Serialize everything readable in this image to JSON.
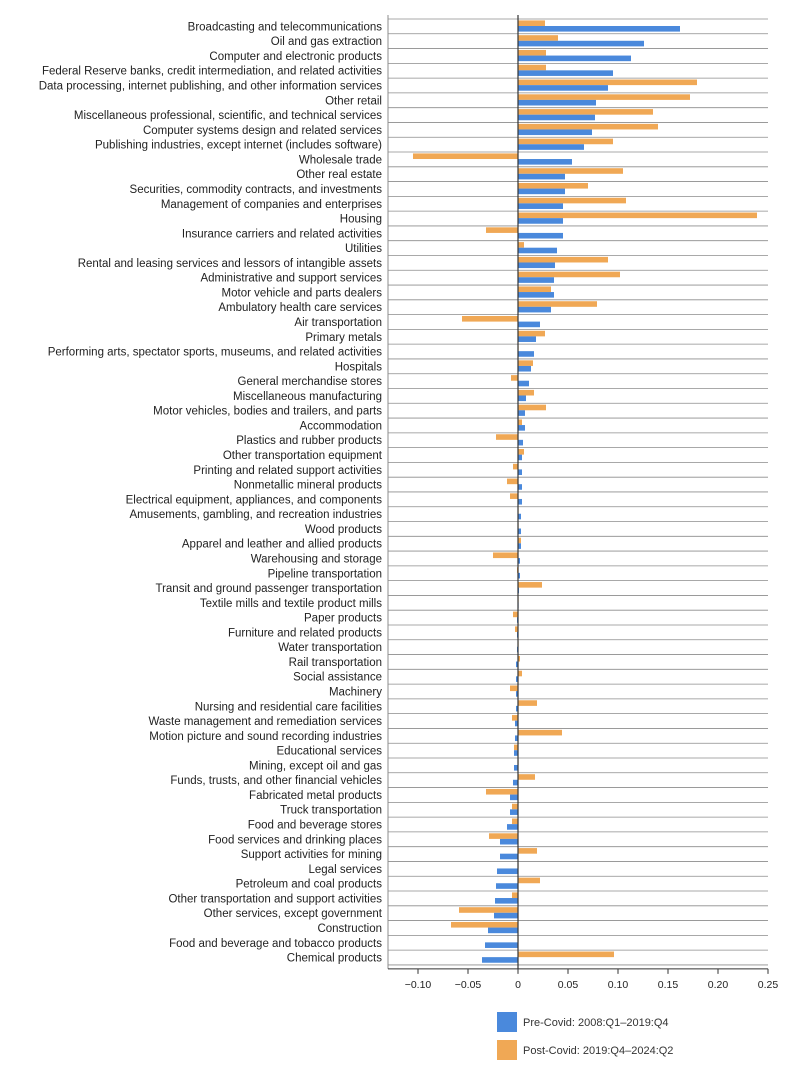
{
  "colors": {
    "pre": "#4a89dc",
    "post": "#f0a855",
    "grid": "#8c8c8c",
    "zero": "#333333"
  },
  "legend": {
    "pre": "Pre-Covid: 2008:Q1–2019:Q4",
    "post": "Post-Covid: 2019:Q4–2024:Q2"
  },
  "chart_data": {
    "type": "bar",
    "orientation": "horizontal",
    "xlim": [
      -0.13,
      0.25
    ],
    "xticks": [
      -0.1,
      -0.05,
      0,
      0.05,
      0.1,
      0.15,
      0.2,
      0.25
    ],
    "xtick_labels": [
      "−0.10",
      "−0.05",
      "0",
      "0.05",
      "0.10",
      "0.15",
      "0.20",
      "0.25"
    ],
    "categories": [
      "Broadcasting and telecommunications",
      "Oil and gas extraction",
      "Computer and electronic products",
      "Federal Reserve banks, credit intermediation, and related activities",
      "Data processing, internet publishing, and other information services",
      "Other retail",
      "Miscellaneous professional, scientific, and technical services",
      "Computer systems design and related services",
      "Publishing industries, except internet (includes software)",
      "Wholesale trade",
      "Other real estate",
      "Securities, commodity contracts, and investments",
      "Management of companies and enterprises",
      "Housing",
      "Insurance carriers and related activities",
      "Utilities",
      "Rental and leasing services and lessors of intangible assets",
      "Administrative and support services",
      "Motor vehicle and parts dealers",
      "Ambulatory health care services",
      "Air transportation",
      "Primary metals",
      "Performing arts, spectator sports, museums, and related activities",
      "Hospitals",
      "General merchandise stores",
      "Miscellaneous manufacturing",
      "Motor vehicles, bodies and trailers, and parts",
      "Accommodation",
      "Plastics and rubber products",
      "Other transportation equipment",
      "Printing and related support activities",
      "Nonmetallic mineral products",
      "Electrical equipment, appliances, and components",
      "Amusements, gambling, and recreation industries",
      "Wood products",
      "Apparel and leather and allied products",
      "Warehousing and storage",
      "Pipeline transportation",
      "Transit and ground passenger transportation",
      "Textile mills and textile product mills",
      "Paper products",
      "Furniture and related products",
      "Water transportation",
      "Rail transportation",
      "Social assistance",
      "Machinery",
      "Nursing and residential care facilities",
      "Waste management and remediation services",
      "Motion picture and sound recording industries",
      "Educational services",
      "Mining, except oil and gas",
      "Funds, trusts, and other financial vehicles",
      "Fabricated metal products",
      "Truck transportation",
      "Food and beverage stores",
      "Food services and drinking places",
      "Support activities for mining",
      "Legal services",
      "Petroleum and coal products",
      "Other transportation and support activities",
      "Other services, except government",
      "Construction",
      "Food and beverage and tobacco products",
      "Chemical products"
    ],
    "series": [
      {
        "name": "Post-Covid: 2019:Q4–2024:Q2",
        "key": "post",
        "values": [
          0.027,
          0.04,
          0.028,
          0.028,
          0.179,
          0.172,
          0.135,
          0.14,
          0.095,
          -0.105,
          0.105,
          0.07,
          0.108,
          0.239,
          -0.032,
          0.006,
          0.09,
          0.102,
          0.033,
          0.079,
          -0.056,
          0.027,
          0.0,
          0.015,
          -0.007,
          0.016,
          0.028,
          0.004,
          -0.022,
          0.006,
          -0.005,
          -0.011,
          -0.008,
          0.0,
          0.0,
          0.003,
          -0.025,
          -0.001,
          0.024,
          0.0,
          -0.005,
          -0.003,
          0.0,
          0.002,
          0.004,
          -0.008,
          0.019,
          -0.006,
          0.044,
          -0.004,
          0.0,
          0.017,
          -0.032,
          -0.006,
          -0.006,
          -0.029,
          0.019,
          0.0,
          0.022,
          -0.006,
          -0.059,
          -0.067,
          0.0,
          0.096
        ]
      },
      {
        "name": "Pre-Covid: 2008:Q1–2019:Q4",
        "key": "pre",
        "values": [
          0.162,
          0.126,
          0.113,
          0.095,
          0.09,
          0.078,
          0.077,
          0.074,
          0.066,
          0.054,
          0.047,
          0.047,
          0.045,
          0.045,
          0.045,
          0.039,
          0.037,
          0.036,
          0.036,
          0.033,
          0.022,
          0.018,
          0.016,
          0.013,
          0.011,
          0.008,
          0.007,
          0.007,
          0.005,
          0.004,
          0.004,
          0.004,
          0.004,
          0.003,
          0.003,
          0.003,
          0.002,
          0.002,
          0.001,
          0.0,
          -0.001,
          -0.001,
          -0.001,
          -0.002,
          -0.002,
          -0.002,
          -0.002,
          -0.003,
          -0.003,
          -0.004,
          -0.004,
          -0.005,
          -0.008,
          -0.008,
          -0.011,
          -0.018,
          -0.018,
          -0.021,
          -0.022,
          -0.023,
          -0.024,
          -0.03,
          -0.033,
          -0.036
        ]
      }
    ],
    "grid": true,
    "legend_position": "bottom-right"
  }
}
